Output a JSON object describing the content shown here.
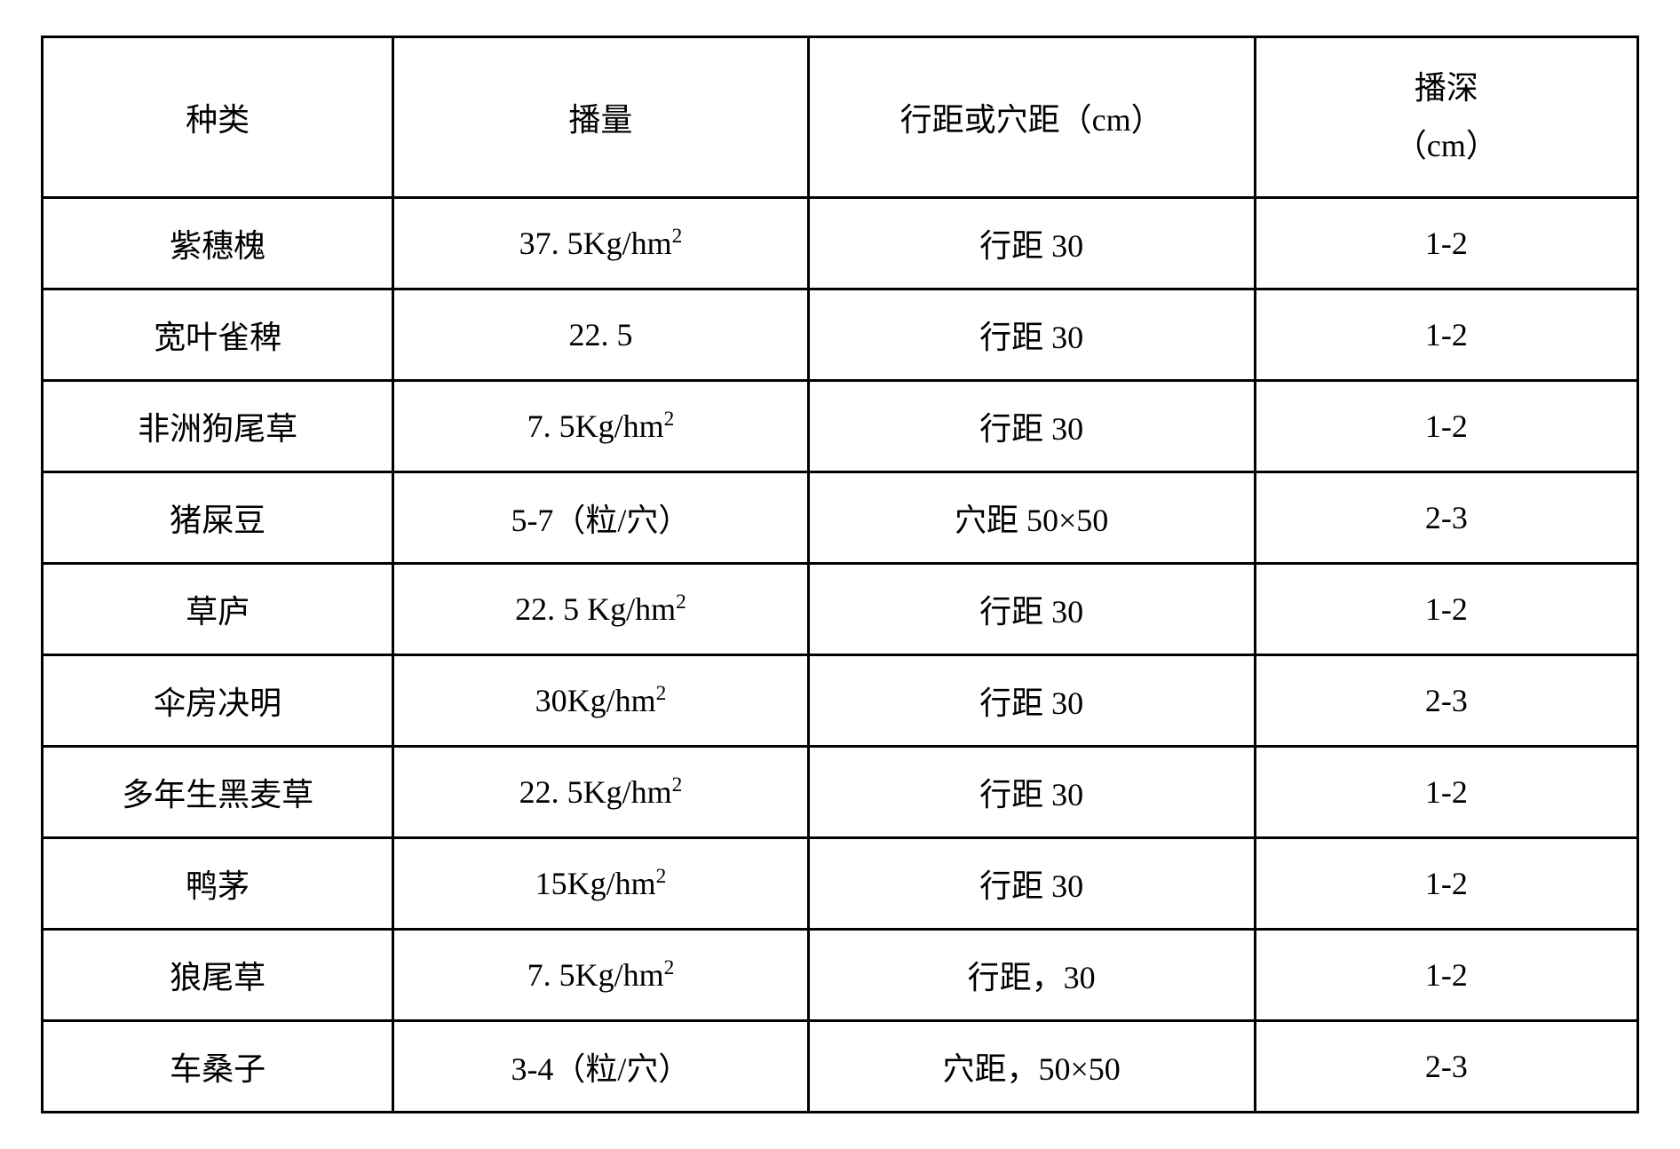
{
  "table": {
    "columns": [
      {
        "label": "种类",
        "width": "22%"
      },
      {
        "label": "播量",
        "width": "26%"
      },
      {
        "label": "行距或穴距（cm）",
        "width": "28%"
      },
      {
        "label_line1": "播深",
        "label_line2": "（cm）",
        "width": "24%"
      }
    ],
    "rows": [
      {
        "species": "紫穗槐",
        "rate_pre": "37. 5Kg/hm",
        "rate_sup": "2",
        "spacing": "行距 30",
        "depth": "1-2"
      },
      {
        "species": "宽叶雀稗",
        "rate_pre": "22. 5",
        "rate_sup": "",
        "spacing": "行距 30",
        "depth": "1-2"
      },
      {
        "species": "非洲狗尾草",
        "rate_pre": "7. 5Kg/hm",
        "rate_sup": "2",
        "spacing": "行距 30",
        "depth": "1-2"
      },
      {
        "species": "猪屎豆",
        "rate_pre": "5-7（粒/穴）",
        "rate_sup": "",
        "spacing": "穴距 50×50",
        "depth": "2-3"
      },
      {
        "species": "草庐",
        "rate_pre": "22. 5 Kg/hm",
        "rate_sup": "2",
        "spacing": "行距 30",
        "depth": "1-2"
      },
      {
        "species": "伞房决明",
        "rate_pre": "30Kg/hm",
        "rate_sup": "2",
        "spacing": "行距 30",
        "depth": "2-3"
      },
      {
        "species": "多年生黑麦草",
        "rate_pre": "22. 5Kg/hm",
        "rate_sup": "2",
        "spacing": "行距 30",
        "depth": "1-2"
      },
      {
        "species": "鸭茅",
        "rate_pre": "15Kg/hm",
        "rate_sup": "2",
        "spacing": "行距 30",
        "depth": "1-2"
      },
      {
        "species": "狼尾草",
        "rate_pre": "7. 5Kg/hm",
        "rate_sup": "2",
        "spacing": "行距，30",
        "depth": "1-2"
      },
      {
        "species": "车桑子",
        "rate_pre": "3-4（粒/穴）",
        "rate_sup": "",
        "spacing": "穴距，50×50",
        "depth": "2-3"
      }
    ],
    "styling": {
      "border_color": "#000000",
      "border_width": 3,
      "background_color": "#ffffff",
      "text_color": "#000000",
      "font_size": 36,
      "cell_padding_vertical": 24,
      "cell_padding_horizontal": 10,
      "font_family": "SimSun"
    }
  }
}
